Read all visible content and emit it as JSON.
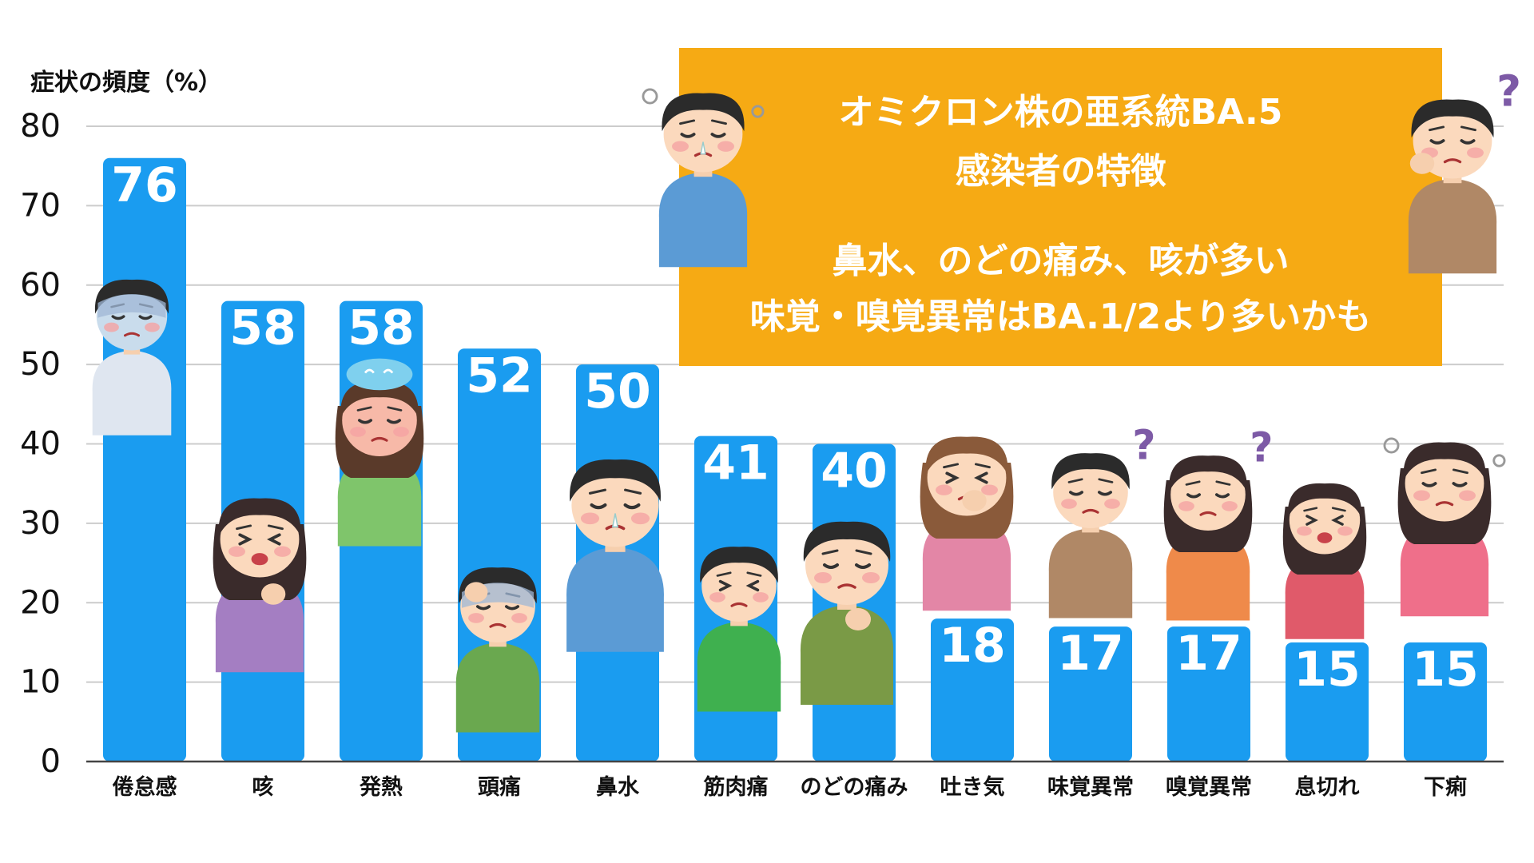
{
  "chart_data": {
    "type": "bar",
    "ylabel": "症状の頻度（%）",
    "ylim": [
      0,
      80
    ],
    "yticks": [
      0,
      10,
      20,
      30,
      40,
      50,
      60,
      70,
      80
    ],
    "grid": true,
    "categories": [
      "倦怠感",
      "咳",
      "発熱",
      "頭痛",
      "鼻水",
      "筋肉痛",
      "のどの痛み",
      "吐き気",
      "味覚異常",
      "嗅覚異常",
      "息切れ",
      "下痢"
    ],
    "values": [
      76,
      58,
      58,
      52,
      50,
      41,
      40,
      18,
      17,
      17,
      15,
      15
    ],
    "bar_color": "#1a9cf0",
    "label_color": "#ffffff"
  },
  "infobox": {
    "title_line1": "オミクロン株の亜系統BA.5",
    "title_line2": "感染者の特徴",
    "point_line1": "鼻水、のどの痛み、咳が多い",
    "point_line2": "味覚・嗅覚異常はBA.1/2より多いかも",
    "background": "#f6aa14"
  },
  "illustrations": [
    "fatigued-person",
    "coughing-woman",
    "fever-woman",
    "headache-man",
    "runny-nose-man",
    "muscle-pain-man",
    "sore-throat-man",
    "nauseous-woman",
    "taste-disorder-man",
    "smell-disorder-woman",
    "breathless-woman",
    "diarrhea-woman",
    "runny-nose-man-box",
    "taste-disorder-man-box"
  ]
}
